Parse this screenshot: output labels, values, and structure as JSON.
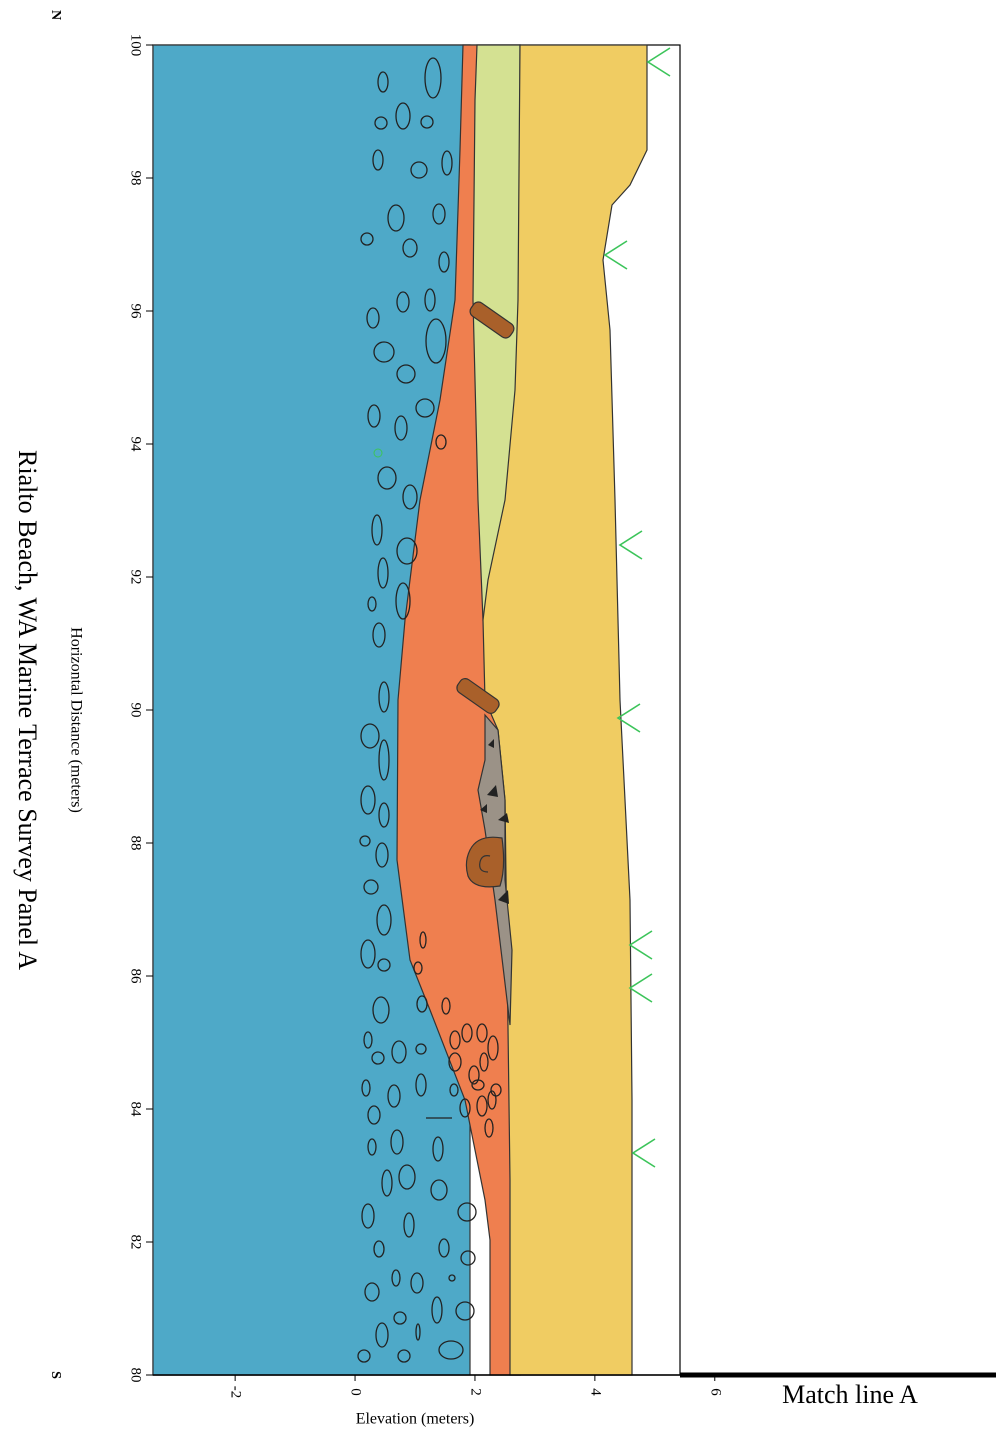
{
  "north_label": "N",
  "south_label": "S",
  "title": "Rialto Beach, WA Marine Terrace Survey Panel A",
  "distance_axis": {
    "label": "Horizontal Distance (meters)",
    "range": [
      80,
      100
    ],
    "ticks": [
      80,
      82,
      84,
      86,
      88,
      90,
      92,
      94,
      96,
      98,
      100
    ]
  },
  "elevation_axis": {
    "label": "Elevation (meters)",
    "range": [
      -3.37,
      5.42
    ],
    "ticks": [
      -2,
      0,
      2,
      4,
      6
    ]
  },
  "match_line": "Match line A"
}
